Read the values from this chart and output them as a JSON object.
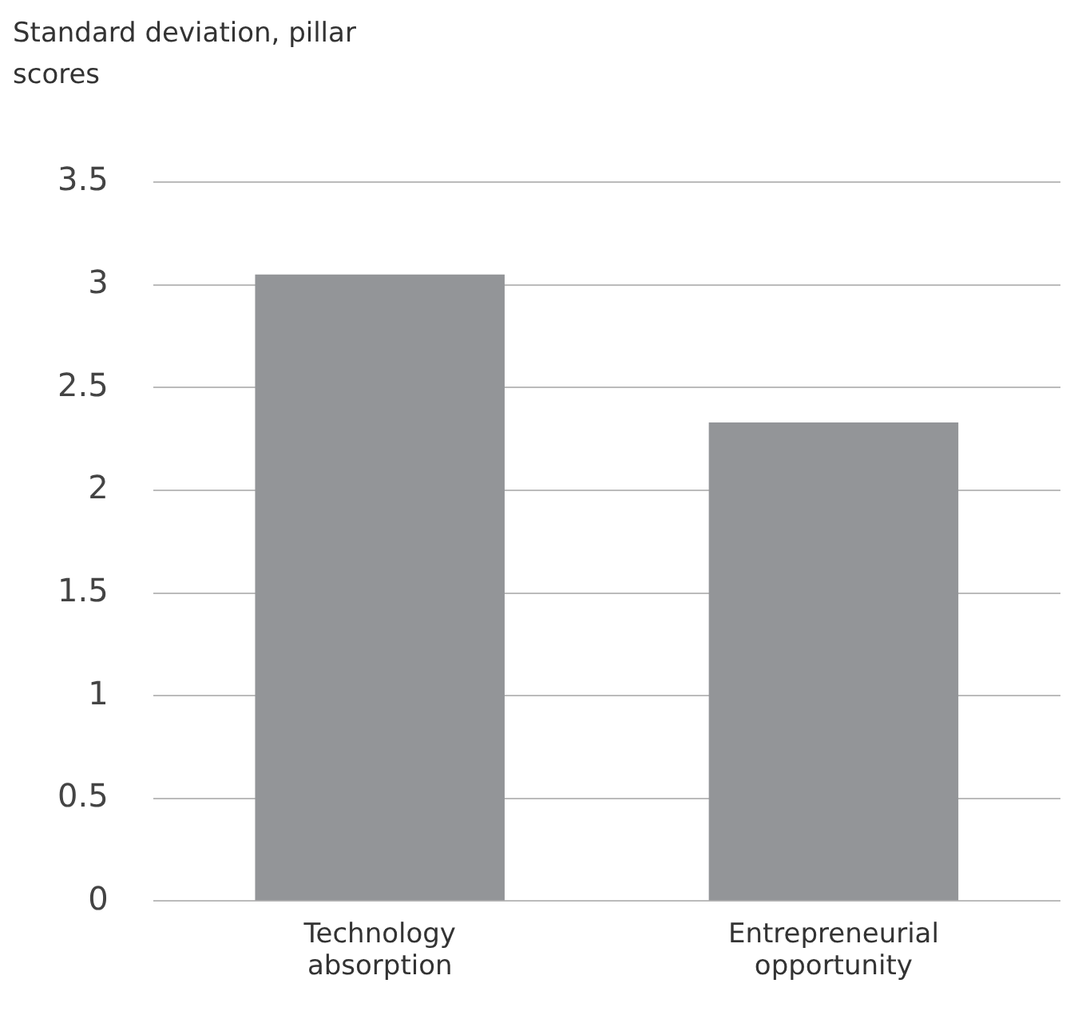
{
  "chart_data": {
    "type": "bar",
    "ylabel": "Standard deviation, pillar scores",
    "categories": [
      "Technology absorption",
      "Entrepreneurial opportunity"
    ],
    "values": [
      3.05,
      2.33
    ],
    "color": "#939598",
    "ylim": [
      0,
      3.5
    ],
    "yticks": [
      0,
      0.5,
      1,
      1.5,
      2,
      2.5,
      3,
      3.5
    ],
    "grid": "y",
    "legend": false
  }
}
